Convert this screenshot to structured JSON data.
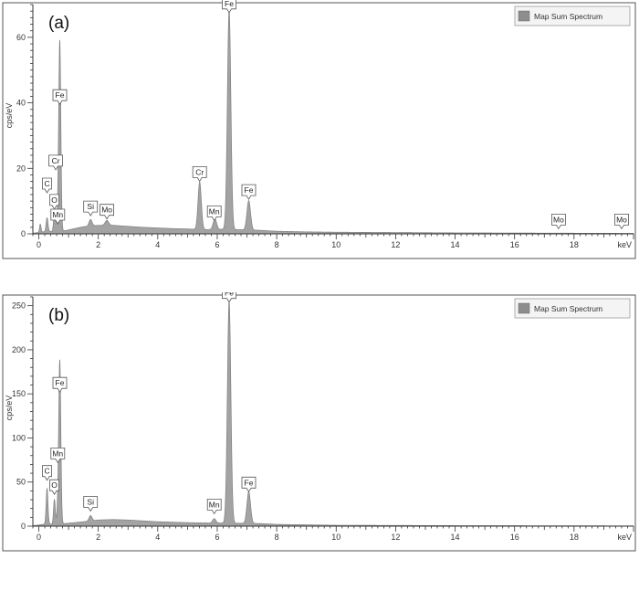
{
  "chart_data": [
    {
      "type": "area",
      "panel_label": "(a)",
      "legend": "Map Sum Spectrum",
      "xlabel": "keV",
      "ylabel": "cps/eV",
      "xlim": [
        -0.2,
        20
      ],
      "ylim": [
        0,
        70
      ],
      "xticks": [
        0,
        2,
        4,
        6,
        8,
        10,
        12,
        14,
        16,
        18
      ],
      "yticks": [
        0,
        20,
        40,
        60
      ],
      "spectrum": {
        "baseline": [
          [
            -0.2,
            0.2
          ],
          [
            0.15,
            0.6
          ],
          [
            0.3,
            1.0
          ],
          [
            0.45,
            0.6
          ],
          [
            0.6,
            0.8
          ],
          [
            0.9,
            1.0
          ],
          [
            1.2,
            1.6
          ],
          [
            1.5,
            2.2
          ],
          [
            2.0,
            2.6
          ],
          [
            2.5,
            2.6
          ],
          [
            3.0,
            2.3
          ],
          [
            3.5,
            2.0
          ],
          [
            4.0,
            1.8
          ],
          [
            4.5,
            1.6
          ],
          [
            5.0,
            1.5
          ],
          [
            5.2,
            1.4
          ],
          [
            5.7,
            1.3
          ],
          [
            6.2,
            1.4
          ],
          [
            7.4,
            1.1
          ],
          [
            8.0,
            0.8
          ],
          [
            9.0,
            0.6
          ],
          [
            10.0,
            0.5
          ],
          [
            12.0,
            0.4
          ],
          [
            14.0,
            0.3
          ],
          [
            16.0,
            0.25
          ],
          [
            18.0,
            0.2
          ],
          [
            20.0,
            0.15
          ]
        ],
        "peaks": [
          {
            "center": 0.05,
            "height": 2.5,
            "width": 0.025
          },
          {
            "center": 0.277,
            "height": 4.0,
            "width": 0.03
          },
          {
            "center": 0.525,
            "height": 5.5,
            "width": 0.03
          },
          {
            "center": 0.57,
            "height": 2.5,
            "width": 0.03
          },
          {
            "center": 0.637,
            "height": 4.0,
            "width": 0.03
          },
          {
            "center": 0.705,
            "height": 58.0,
            "width": 0.035
          },
          {
            "center": 1.74,
            "height": 2.0,
            "width": 0.05
          },
          {
            "center": 2.29,
            "height": 1.5,
            "width": 0.06
          },
          {
            "center": 5.41,
            "height": 14.5,
            "width": 0.055
          },
          {
            "center": 5.9,
            "height": 2.0,
            "width": 0.055
          },
          {
            "center": 5.95,
            "height": 1.5,
            "width": 0.05
          },
          {
            "center": 6.4,
            "height": 67.0,
            "width": 0.058
          },
          {
            "center": 7.06,
            "height": 9.0,
            "width": 0.06
          }
        ]
      },
      "annotations": [
        {
          "label": "Fe",
          "x": 6.4,
          "y": 67
        },
        {
          "label": "Fe",
          "x": 0.705,
          "y": 39
        },
        {
          "label": "Cr",
          "x": 0.57,
          "y": 19
        },
        {
          "label": "C",
          "x": 0.277,
          "y": 12
        },
        {
          "label": "O",
          "x": 0.525,
          "y": 7
        },
        {
          "label": "Mn",
          "x": 0.637,
          "y": 2.5
        },
        {
          "label": "Si",
          "x": 1.74,
          "y": 5
        },
        {
          "label": "Mo",
          "x": 2.29,
          "y": 4
        },
        {
          "label": "Cr",
          "x": 5.41,
          "y": 15.5
        },
        {
          "label": "Mn",
          "x": 5.9,
          "y": 3.5
        },
        {
          "label": "Fe",
          "x": 7.06,
          "y": 10
        },
        {
          "label": "Mo",
          "x": 17.48,
          "y": 1.0
        },
        {
          "label": "Mo",
          "x": 19.6,
          "y": 1.0
        }
      ],
      "colors": {
        "fill": "#a3a3a3",
        "stroke": "#7f7f7f",
        "legend_swatch": "#8d8d8d"
      }
    },
    {
      "type": "area",
      "panel_label": "(b)",
      "legend": "Map Sum Spectrum",
      "xlabel": "keV",
      "ylabel": "cps/eV",
      "xlim": [
        -0.2,
        20
      ],
      "ylim": [
        0,
        260
      ],
      "xticks": [
        0,
        2,
        4,
        6,
        8,
        10,
        12,
        14,
        16,
        18
      ],
      "yticks": [
        0,
        50,
        100,
        150,
        200,
        250
      ],
      "spectrum": {
        "baseline": [
          [
            -0.2,
            0.5
          ],
          [
            0.15,
            2.0
          ],
          [
            0.3,
            3.0
          ],
          [
            0.45,
            2.0
          ],
          [
            0.9,
            3.0
          ],
          [
            1.2,
            4.0
          ],
          [
            1.5,
            5.0
          ],
          [
            2.0,
            7.0
          ],
          [
            2.5,
            7.5
          ],
          [
            3.0,
            7.0
          ],
          [
            3.5,
            6.0
          ],
          [
            4.0,
            5.0
          ],
          [
            5.0,
            4.0
          ],
          [
            5.8,
            3.5
          ],
          [
            6.2,
            3.5
          ],
          [
            7.4,
            3.0
          ],
          [
            8.0,
            2.0
          ],
          [
            9.0,
            1.5
          ],
          [
            10.0,
            1.0
          ],
          [
            12.0,
            0.8
          ],
          [
            14.0,
            0.6
          ],
          [
            16.0,
            0.5
          ],
          [
            18.0,
            0.4
          ],
          [
            20.0,
            0.3
          ]
        ],
        "peaks": [
          {
            "center": 0.277,
            "height": 40.0,
            "width": 0.03
          },
          {
            "center": 0.525,
            "height": 28.0,
            "width": 0.03
          },
          {
            "center": 0.637,
            "height": 15.0,
            "width": 0.03
          },
          {
            "center": 0.705,
            "height": 185.0,
            "width": 0.035
          },
          {
            "center": 1.74,
            "height": 6.0,
            "width": 0.05
          },
          {
            "center": 5.9,
            "height": 5.0,
            "width": 0.055
          },
          {
            "center": 6.4,
            "height": 252.0,
            "width": 0.058
          },
          {
            "center": 7.06,
            "height": 36.0,
            "width": 0.06
          }
        ]
      },
      "annotations": [
        {
          "label": "Fe",
          "x": 6.4,
          "y": 252
        },
        {
          "label": "Fe",
          "x": 0.705,
          "y": 150
        },
        {
          "label": "Mn",
          "x": 0.637,
          "y": 70
        },
        {
          "label": "C",
          "x": 0.277,
          "y": 50
        },
        {
          "label": "O",
          "x": 0.525,
          "y": 34
        },
        {
          "label": "Si",
          "x": 1.74,
          "y": 15
        },
        {
          "label": "Mn",
          "x": 5.9,
          "y": 12
        },
        {
          "label": "Fe",
          "x": 7.06,
          "y": 37
        }
      ],
      "colors": {
        "fill": "#a3a3a3",
        "stroke": "#7f7f7f",
        "legend_swatch": "#8d8d8d"
      }
    }
  ]
}
